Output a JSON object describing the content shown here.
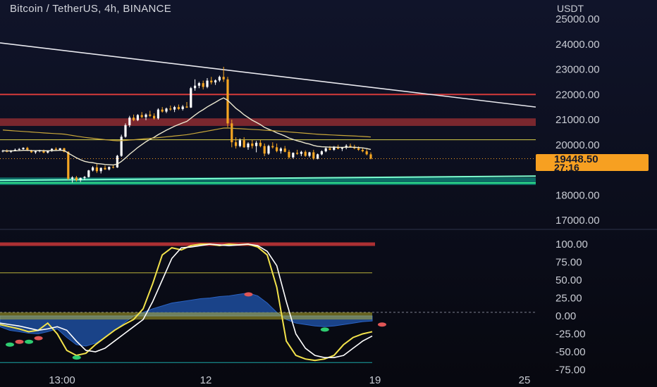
{
  "header": {
    "title": "Bitcoin / TetherUS, 4h, BINANCE",
    "unit": "USDT"
  },
  "price_badge": {
    "price": "19448.50",
    "countdown": "27:16"
  },
  "colors": {
    "background": "#0b0d1a",
    "candle_up": "#ffffff",
    "candle_down": "#f5a623",
    "resistance": "#d63a3a",
    "support_zone": "#10b7a0",
    "trendline": "#e9e9ef",
    "ema": "#ece8d0",
    "long_ma": "#c8a63a",
    "stoch_k": "#f2e24b",
    "stoch_d": "#ffffff",
    "osc_fill": "#1d4e9e"
  },
  "chart_data": [
    {
      "type": "candlestick",
      "title": "Bitcoin / TetherUS, 4h, BINANCE",
      "ylabel": "USDT",
      "ylim": [
        17000,
        25500
      ],
      "yticks": [
        "25000.00",
        "24000.00",
        "23000.00",
        "22000.00",
        "21000.00",
        "20000.00",
        "18000.00",
        "17000.00"
      ],
      "xticks": [
        "13:00",
        "12",
        "19",
        "25"
      ],
      "last_price": 19448.5,
      "candles": [
        [
          19750,
          19800,
          19700,
          19760
        ],
        [
          19760,
          19820,
          19700,
          19720
        ],
        [
          19720,
          19790,
          19680,
          19770
        ],
        [
          19770,
          19850,
          19740,
          19800
        ],
        [
          19800,
          19870,
          19760,
          19830
        ],
        [
          19830,
          19900,
          19780,
          19880
        ],
        [
          19880,
          19920,
          19750,
          19780
        ],
        [
          19780,
          19800,
          19680,
          19700
        ],
        [
          19700,
          19760,
          19640,
          19740
        ],
        [
          19740,
          19800,
          19700,
          19780
        ],
        [
          19780,
          19810,
          19660,
          19690
        ],
        [
          19690,
          19780,
          19650,
          19760
        ],
        [
          19760,
          19860,
          19720,
          19840
        ],
        [
          19840,
          19900,
          19760,
          19800
        ],
        [
          19800,
          19870,
          19780,
          19860
        ],
        [
          19860,
          19880,
          19700,
          19720
        ],
        [
          19720,
          19740,
          18600,
          18650
        ],
        [
          18650,
          18750,
          18500,
          18700
        ],
        [
          18700,
          18760,
          18540,
          18600
        ],
        [
          18600,
          18700,
          18520,
          18680
        ],
        [
          18680,
          18760,
          18600,
          18720
        ],
        [
          18720,
          19000,
          18700,
          18980
        ],
        [
          18980,
          19150,
          18940,
          19100
        ],
        [
          19100,
          19240,
          18880,
          18950
        ],
        [
          18950,
          19100,
          18860,
          19080
        ],
        [
          19080,
          19180,
          19000,
          19020
        ],
        [
          19020,
          19140,
          18980,
          19120
        ],
        [
          19120,
          19200,
          19060,
          19100
        ],
        [
          19100,
          19600,
          19080,
          19560
        ],
        [
          19560,
          20400,
          19520,
          20320
        ],
        [
          20320,
          20850,
          20280,
          20780
        ],
        [
          20780,
          21150,
          20700,
          21080
        ],
        [
          21080,
          21200,
          20940,
          20980
        ],
        [
          20980,
          21220,
          20940,
          21180
        ],
        [
          21180,
          21300,
          21060,
          21100
        ],
        [
          21100,
          21250,
          20980,
          21200
        ],
        [
          21200,
          21350,
          21100,
          21150
        ],
        [
          21150,
          21250,
          21000,
          21050
        ],
        [
          21050,
          21450,
          21000,
          21400
        ],
        [
          21400,
          21500,
          21280,
          21320
        ],
        [
          21320,
          21480,
          21260,
          21440
        ],
        [
          21440,
          21560,
          21350,
          21400
        ],
        [
          21400,
          21550,
          21300,
          21500
        ],
        [
          21500,
          21600,
          21380,
          21420
        ],
        [
          21420,
          21580,
          21360,
          21520
        ],
        [
          21520,
          21700,
          21460,
          21480
        ],
        [
          21480,
          22300,
          21460,
          22250
        ],
        [
          22250,
          22600,
          22150,
          22350
        ],
        [
          22350,
          22500,
          22250,
          22450
        ],
        [
          22450,
          22550,
          22200,
          22300
        ],
        [
          22300,
          22650,
          22250,
          22550
        ],
        [
          22550,
          22700,
          22400,
          22480
        ],
        [
          22480,
          22600,
          22380,
          22560
        ],
        [
          22560,
          22750,
          22500,
          22700
        ],
        [
          22700,
          23100,
          22500,
          22600
        ],
        [
          22600,
          22700,
          20700,
          20850
        ],
        [
          20850,
          21000,
          19900,
          20100
        ],
        [
          20100,
          20300,
          19850,
          19950
        ],
        [
          19950,
          20250,
          19900,
          20180
        ],
        [
          20180,
          20300,
          19880,
          19900
        ],
        [
          19900,
          20100,
          19800,
          20050
        ],
        [
          20050,
          20200,
          19850,
          19950
        ],
        [
          19950,
          20150,
          19700,
          20080
        ],
        [
          20080,
          20200,
          19900,
          19950
        ],
        [
          19950,
          20050,
          19550,
          19650
        ],
        [
          19650,
          20000,
          19600,
          19950
        ],
        [
          19950,
          20100,
          19850,
          19900
        ],
        [
          19900,
          20050,
          19700,
          19750
        ],
        [
          19750,
          19900,
          19650,
          19850
        ],
        [
          19850,
          19950,
          19700,
          19720
        ],
        [
          19720,
          19800,
          19450,
          19500
        ],
        [
          19500,
          19700,
          19450,
          19680
        ],
        [
          19680,
          19800,
          19600,
          19640
        ],
        [
          19640,
          19760,
          19550,
          19720
        ],
        [
          19720,
          19780,
          19520,
          19560
        ],
        [
          19560,
          19720,
          19500,
          19700
        ],
        [
          19700,
          19800,
          19400,
          19450
        ],
        [
          19450,
          19650,
          19420,
          19620
        ],
        [
          19620,
          19780,
          19580,
          19740
        ],
        [
          19740,
          19900,
          19700,
          19860
        ],
        [
          19860,
          19950,
          19780,
          19800
        ],
        [
          19800,
          19950,
          19760,
          19920
        ],
        [
          19920,
          20000,
          19820,
          19840
        ],
        [
          19840,
          19900,
          19750,
          19880
        ],
        [
          19880,
          20020,
          19820,
          19960
        ],
        [
          19960,
          20050,
          19880,
          19920
        ],
        [
          19920,
          20000,
          19820,
          19860
        ],
        [
          19860,
          19940,
          19760,
          19800
        ],
        [
          19800,
          19880,
          19700,
          19740
        ],
        [
          19740,
          19840,
          19580,
          19620
        ],
        [
          19620,
          19700,
          19420,
          19449
        ]
      ],
      "resistance": 22000,
      "zone_red": [
        20750,
        21050
      ],
      "level_yellow": 20200,
      "level_dotted": 19448.5,
      "support_zone": [
        18400,
        18700
      ],
      "trendline": {
        "start": 24050,
        "end": 21500
      }
    },
    {
      "type": "line",
      "ylim": [
        -75,
        100
      ],
      "yticks": [
        "100.00",
        "75.00",
        "50.00",
        "25.00",
        "0.00",
        "-25.00",
        "-50.00",
        "-75.00"
      ],
      "levels": [
        100,
        60,
        5,
        -65
      ],
      "series": [
        {
          "values": [
            -12,
            -15,
            -18,
            -22,
            -20,
            -10,
            -25,
            -48,
            -55,
            -52,
            -40,
            -30,
            -20,
            -12,
            -5,
            10,
            45,
            85,
            95,
            92,
            98,
            100,
            100,
            98,
            100,
            99,
            100,
            96,
            85,
            40,
            -35,
            -55,
            -60,
            -62,
            -60,
            -55,
            -40,
            -30,
            -25,
            -22
          ]
        },
        {
          "values": [
            -10,
            -12,
            -14,
            -17,
            -20,
            -18,
            -15,
            -20,
            -35,
            -48,
            -50,
            -45,
            -35,
            -25,
            -15,
            -5,
            20,
            50,
            80,
            95,
            96,
            98,
            100,
            99,
            98,
            99,
            100,
            98,
            90,
            70,
            20,
            -25,
            -45,
            -55,
            -58,
            -58,
            -55,
            -45,
            -35,
            -28
          ]
        }
      ],
      "histogram": [
        -15,
        -20,
        -22,
        -24,
        -25,
        -22,
        -18,
        -30,
        -40,
        -42,
        -38,
        -30,
        -20,
        -10,
        0,
        5,
        10,
        14,
        18,
        20,
        22,
        24,
        25,
        27,
        28,
        30,
        32,
        28,
        18,
        5,
        -5,
        -10,
        -12,
        -14,
        -15,
        -14,
        -12,
        -10,
        -8,
        -7
      ],
      "dots": [
        {
          "i": 0,
          "v": -40,
          "color": "#2ecc71"
        },
        {
          "i": 1,
          "v": -36,
          "color": "#e05656"
        },
        {
          "i": 2,
          "v": -36,
          "color": "#2ecc71"
        },
        {
          "i": 3,
          "v": -31,
          "color": "#e05656"
        },
        {
          "i": 7,
          "v": -58,
          "color": "#2ecc71"
        },
        {
          "i": 25,
          "v": 30,
          "color": "#e05656"
        },
        {
          "i": 33,
          "v": -19,
          "color": "#2ecc71"
        },
        {
          "i": 39,
          "v": -12,
          "color": "#e05656"
        }
      ]
    }
  ]
}
